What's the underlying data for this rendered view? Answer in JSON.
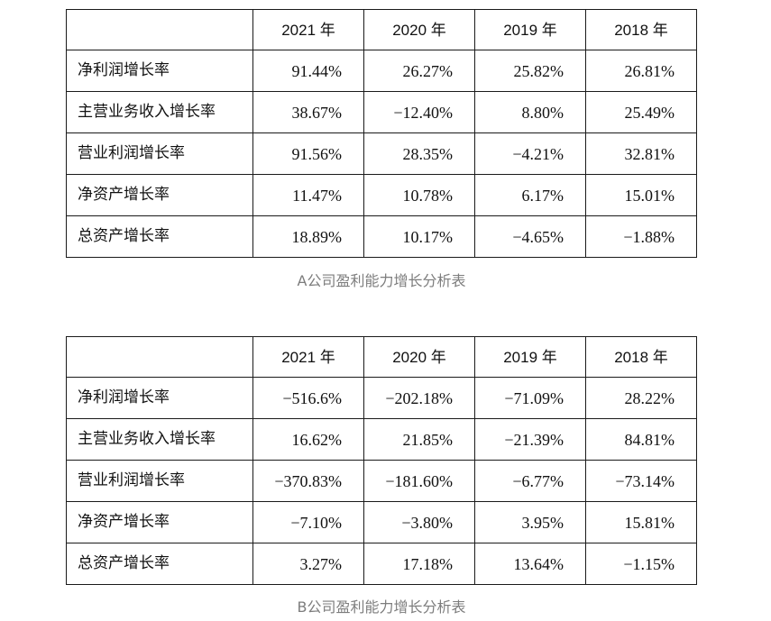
{
  "tables": [
    {
      "caption": "A公司盈利能力增长分析表",
      "years": [
        "2021 年",
        "2020 年",
        "2019 年",
        "2018 年"
      ],
      "rows": [
        {
          "label": "净利润增长率",
          "values": [
            "91.44%",
            "26.27%",
            "25.82%",
            "26.81%"
          ]
        },
        {
          "label": "主营业务收入增长率",
          "values": [
            "38.67%",
            "−12.40%",
            "8.80%",
            "25.49%"
          ]
        },
        {
          "label": "营业利润增长率",
          "values": [
            "91.56%",
            "28.35%",
            "−4.21%",
            "32.81%"
          ]
        },
        {
          "label": "净资产增长率",
          "values": [
            "11.47%",
            "10.78%",
            "6.17%",
            "15.01%"
          ]
        },
        {
          "label": "总资产增长率",
          "values": [
            "18.89%",
            "10.17%",
            "−4.65%",
            "−1.88%"
          ]
        }
      ]
    },
    {
      "caption": "B公司盈利能力增长分析表",
      "years": [
        "2021 年",
        "2020 年",
        "2019 年",
        "2018 年"
      ],
      "rows": [
        {
          "label": "净利润增长率",
          "values": [
            "−516.6%",
            "−202.18%",
            "−71.09%",
            "28.22%"
          ]
        },
        {
          "label": "主营业务收入增长率",
          "values": [
            "16.62%",
            "21.85%",
            "−21.39%",
            "84.81%"
          ]
        },
        {
          "label": "营业利润增长率",
          "values": [
            "−370.83%",
            "−181.60%",
            "−6.77%",
            "−73.14%"
          ]
        },
        {
          "label": "净资产增长率",
          "values": [
            "−7.10%",
            "−3.80%",
            "3.95%",
            "15.81%"
          ]
        },
        {
          "label": "总资产增长率",
          "values": [
            "3.27%",
            "17.18%",
            "13.64%",
            "−1.15%"
          ]
        }
      ]
    }
  ]
}
